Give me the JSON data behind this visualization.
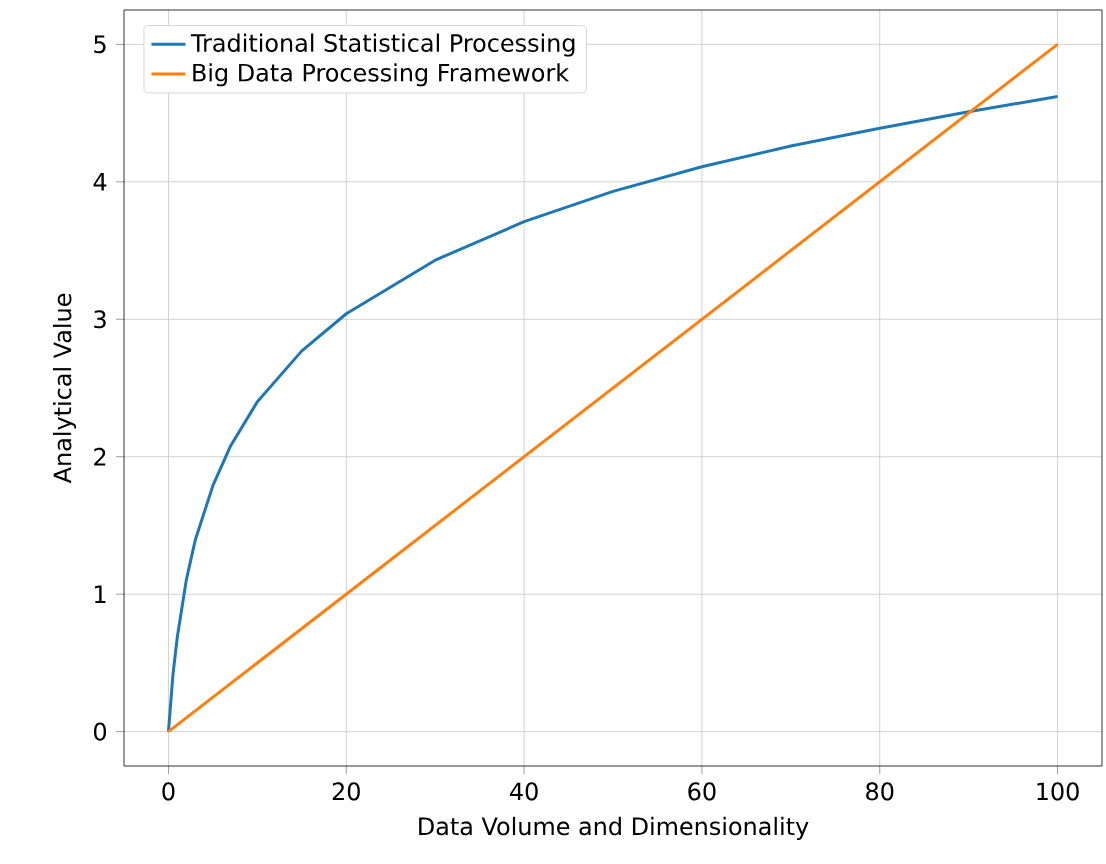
{
  "chart_data": {
    "type": "line",
    "xlabel": "Data Volume and Dimensionality",
    "ylabel": "Analytical Value",
    "xlim": [
      -5,
      105
    ],
    "ylim": [
      -0.25,
      5.25
    ],
    "xticks": [
      0,
      20,
      40,
      60,
      80,
      100
    ],
    "yticks": [
      0,
      1,
      2,
      3,
      4,
      5
    ],
    "grid": true,
    "legend": "top left",
    "marker": "none",
    "line_style": "solid",
    "series": [
      {
        "name": "Traditional Statistical Processing",
        "color": "#1f77b4",
        "x": [
          0,
          0.5,
          1,
          2,
          3,
          5,
          7,
          10,
          15,
          20,
          30,
          40,
          50,
          60,
          70,
          80,
          90,
          100
        ],
        "values": [
          0,
          0.41,
          0.69,
          1.1,
          1.39,
          1.79,
          2.08,
          2.4,
          2.77,
          3.04,
          3.43,
          3.71,
          3.93,
          4.11,
          4.26,
          4.39,
          4.51,
          4.62
        ]
      },
      {
        "name": "Big Data Processing Framework",
        "color": "#ff7f0e",
        "x": [
          0,
          100
        ],
        "values": [
          0,
          5
        ]
      }
    ]
  }
}
